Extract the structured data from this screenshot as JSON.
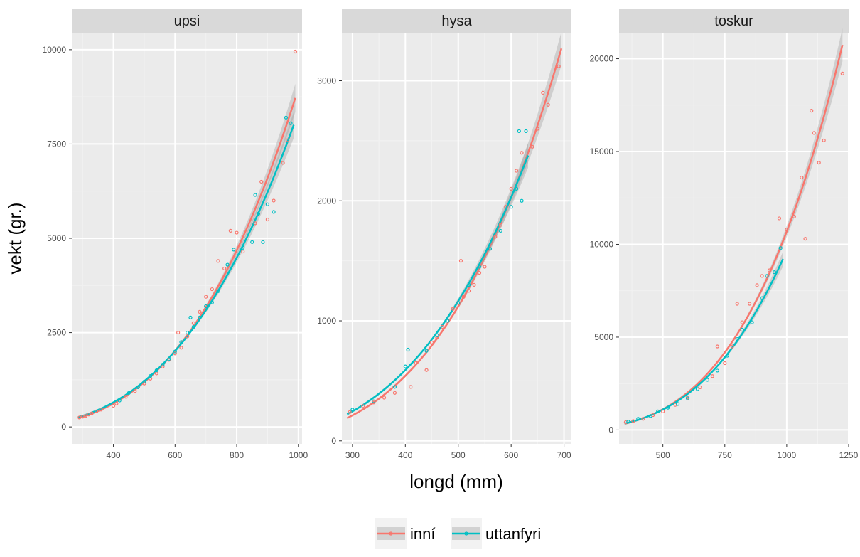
{
  "chart_data": {
    "type": "scatter",
    "ylabel": "vekt (gr.)",
    "xlabel": "longd (mm)",
    "colors": {
      "inní": "#F8766D",
      "uttanfyri": "#00BFC4"
    },
    "legend": {
      "position": "bottom",
      "items": [
        "inní",
        "uttanfyri"
      ]
    },
    "panels": [
      {
        "title": "upsi",
        "xlim": [
          265,
          1012
        ],
        "ylim": [
          -450,
          10450
        ],
        "xticks": [
          400,
          600,
          800,
          1000
        ],
        "yticks": [
          0,
          2500,
          5000,
          7500,
          10000
        ],
        "xtick_labels": [
          "400",
          "600",
          "800",
          "1000"
        ],
        "ytick_labels": [
          "0",
          "2500",
          "5000",
          "7500",
          "10000"
        ],
        "fit": {
          "x_from": 285,
          "inní_x_to": 990,
          "uttanfyri_x_to": 985
        },
        "points": {
          "inní": [
            [
              290,
              250
            ],
            [
              300,
              270
            ],
            [
              310,
              290
            ],
            [
              320,
              330
            ],
            [
              330,
              360
            ],
            [
              345,
              410
            ],
            [
              360,
              460
            ],
            [
              400,
              560
            ],
            [
              410,
              620
            ],
            [
              440,
              800
            ],
            [
              470,
              950
            ],
            [
              500,
              1150
            ],
            [
              520,
              1280
            ],
            [
              540,
              1420
            ],
            [
              560,
              1600
            ],
            [
              580,
              1780
            ],
            [
              600,
              1950
            ],
            [
              610,
              2500
            ],
            [
              620,
              2100
            ],
            [
              640,
              2400
            ],
            [
              660,
              2750
            ],
            [
              680,
              3050
            ],
            [
              700,
              3450
            ],
            [
              720,
              3650
            ],
            [
              740,
              4400
            ],
            [
              760,
              4200
            ],
            [
              780,
              5200
            ],
            [
              800,
              5150
            ],
            [
              820,
              4650
            ],
            [
              860,
              5400
            ],
            [
              880,
              6500
            ],
            [
              900,
              5500
            ],
            [
              920,
              6000
            ],
            [
              950,
              7000
            ],
            [
              965,
              7600
            ],
            [
              990,
              9950
            ]
          ],
          "uttanfyri": [
            [
              420,
              700
            ],
            [
              450,
              900
            ],
            [
              480,
              1050
            ],
            [
              500,
              1200
            ],
            [
              520,
              1350
            ],
            [
              540,
              1500
            ],
            [
              560,
              1650
            ],
            [
              580,
              1800
            ],
            [
              600,
              2000
            ],
            [
              620,
              2250
            ],
            [
              640,
              2500
            ],
            [
              650,
              2900
            ],
            [
              660,
              2650
            ],
            [
              680,
              2900
            ],
            [
              700,
              3200
            ],
            [
              720,
              3300
            ],
            [
              740,
              3600
            ],
            [
              770,
              4300
            ],
            [
              790,
              4700
            ],
            [
              820,
              4750
            ],
            [
              850,
              4900
            ],
            [
              860,
              6150
            ],
            [
              870,
              5650
            ],
            [
              885,
              4900
            ],
            [
              900,
              5900
            ],
            [
              920,
              5700
            ],
            [
              960,
              8200
            ],
            [
              975,
              8050
            ]
          ]
        }
      },
      {
        "title": "hysa",
        "xlim": [
          280,
          714
        ],
        "ylim": [
          -25,
          3400
        ],
        "xticks": [
          300,
          400,
          500,
          600,
          700
        ],
        "yticks": [
          0,
          1000,
          2000,
          3000
        ],
        "xtick_labels": [
          "300",
          "400",
          "500",
          "600",
          "700"
        ],
        "ytick_labels": [
          "0",
          "1000",
          "2000",
          "3000"
        ],
        "fit": {
          "x_from": 290,
          "inní_x_to": 695,
          "uttanfyri_x_to": 632
        },
        "points": {
          "inní": [
            [
              295,
              240
            ],
            [
              320,
              290
            ],
            [
              340,
              320
            ],
            [
              360,
              360
            ],
            [
              380,
              400
            ],
            [
              410,
              450
            ],
            [
              420,
              650
            ],
            [
              440,
              590
            ],
            [
              450,
              820
            ],
            [
              460,
              860
            ],
            [
              470,
              950
            ],
            [
              480,
              1000
            ],
            [
              490,
              1100
            ],
            [
              500,
              1150
            ],
            [
              505,
              1500
            ],
            [
              510,
              1200
            ],
            [
              520,
              1250
            ],
            [
              530,
              1300
            ],
            [
              540,
              1400
            ],
            [
              550,
              1450
            ],
            [
              560,
              1600
            ],
            [
              570,
              1700
            ],
            [
              580,
              1800
            ],
            [
              590,
              1950
            ],
            [
              600,
              2100
            ],
            [
              610,
              2250
            ],
            [
              620,
              2400
            ],
            [
              640,
              2450
            ],
            [
              650,
              2600
            ],
            [
              660,
              2900
            ],
            [
              670,
              2800
            ],
            [
              690,
              3120
            ]
          ],
          "uttanfyri": [
            [
              300,
              260
            ],
            [
              340,
              330
            ],
            [
              380,
              450
            ],
            [
              400,
              620
            ],
            [
              405,
              760
            ],
            [
              440,
              750
            ],
            [
              460,
              880
            ],
            [
              480,
              1000
            ],
            [
              500,
              1150
            ],
            [
              520,
              1300
            ],
            [
              540,
              1450
            ],
            [
              560,
              1600
            ],
            [
              580,
              1750
            ],
            [
              600,
              1950
            ],
            [
              610,
              2100
            ],
            [
              615,
              2580
            ],
            [
              620,
              2000
            ],
            [
              628,
              2580
            ]
          ]
        }
      },
      {
        "title": "toskur",
        "xlim": [
          323,
          1250
        ],
        "ylim": [
          -750,
          21400
        ],
        "xticks": [
          500,
          750,
          1000,
          1250
        ],
        "yticks": [
          0,
          5000,
          10000,
          15000,
          20000
        ],
        "xtick_labels": [
          "500",
          "750",
          "1000",
          "1250"
        ],
        "ytick_labels": [
          "0",
          "5000",
          "10000",
          "15000",
          "20000"
        ],
        "fit": {
          "x_from": 345,
          "inní_x_to": 1225,
          "uttanfyri_x_to": 985
        },
        "points": {
          "inní": [
            [
              350,
              420
            ],
            [
              380,
              480
            ],
            [
              420,
              600
            ],
            [
              460,
              800
            ],
            [
              500,
              1000
            ],
            [
              550,
              1350
            ],
            [
              600,
              1750
            ],
            [
              650,
              2300
            ],
            [
              700,
              2900
            ],
            [
              720,
              4500
            ],
            [
              750,
              3600
            ],
            [
              780,
              4500
            ],
            [
              800,
              6800
            ],
            [
              820,
              5800
            ],
            [
              850,
              6800
            ],
            [
              880,
              7800
            ],
            [
              900,
              8300
            ],
            [
              930,
              8600
            ],
            [
              970,
              11400
            ],
            [
              1000,
              10800
            ],
            [
              1030,
              11500
            ],
            [
              1060,
              13600
            ],
            [
              1075,
              10300
            ],
            [
              1100,
              17200
            ],
            [
              1110,
              16000
            ],
            [
              1130,
              14400
            ],
            [
              1150,
              15600
            ],
            [
              1225,
              19200
            ]
          ],
          "uttanfyri": [
            [
              360,
              450
            ],
            [
              400,
              600
            ],
            [
              450,
              750
            ],
            [
              480,
              1000
            ],
            [
              520,
              1200
            ],
            [
              560,
              1400
            ],
            [
              600,
              1700
            ],
            [
              640,
              2200
            ],
            [
              680,
              2700
            ],
            [
              720,
              3200
            ],
            [
              760,
              4000
            ],
            [
              800,
              4900
            ],
            [
              820,
              5400
            ],
            [
              860,
              5800
            ],
            [
              900,
              7100
            ],
            [
              920,
              8300
            ],
            [
              950,
              8500
            ],
            [
              975,
              9800
            ]
          ]
        }
      }
    ]
  }
}
